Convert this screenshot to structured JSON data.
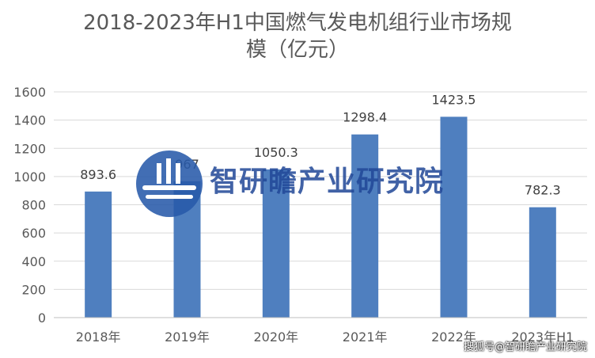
{
  "chart_data": {
    "type": "bar",
    "title_line1": "2018-2023年H1中国燃气发电机组行业市场规",
    "title_line2": "模（亿元）",
    "categories": [
      "2018年",
      "2019年",
      "2020年",
      "2021年",
      "2022年",
      "2023年H1"
    ],
    "values": [
      893.6,
      967,
      1050.3,
      1298.4,
      1423.5,
      782.3
    ],
    "value_labels": [
      "893.6",
      "967",
      "1050.3",
      "1298.4",
      "1423.5",
      "782.3"
    ],
    "ylim": [
      0,
      1600
    ],
    "yticks": [
      0,
      200,
      400,
      600,
      800,
      1000,
      1200,
      1400,
      1600
    ],
    "grid": true,
    "bar_color": "#4f7fbf"
  },
  "watermark": {
    "center_text": "智研瞻产业研究院",
    "footer_text": "搜狐号@智研瞻产业研究院"
  }
}
